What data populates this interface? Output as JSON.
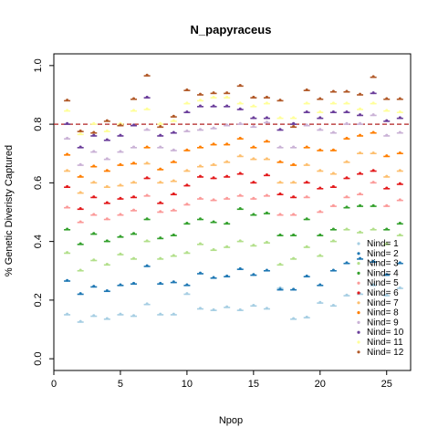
{
  "chart_data": {
    "type": "scatter",
    "title": "N_papyraceus",
    "xlabel": "Npop",
    "ylabel": "% Genetic Diveristy Captured",
    "xlim": [
      0,
      26.8
    ],
    "ylim": [
      -0.04,
      1.04
    ],
    "xticks": [
      0,
      5,
      10,
      15,
      20,
      25
    ],
    "yticks": [
      0.0,
      0.2,
      0.4,
      0.6,
      0.8,
      1.0
    ],
    "ytick_labels": [
      "0.0",
      "0.2",
      "0.4",
      "0.6",
      "0.8",
      "1.0"
    ],
    "reference_line": {
      "y": 0.8,
      "color": "#B22222",
      "style": "dashed"
    },
    "grid": false,
    "legend": {
      "position": "bottom-right"
    },
    "x": [
      1,
      2,
      3,
      4,
      5,
      6,
      7,
      8,
      9,
      10,
      11,
      12,
      13,
      14,
      15,
      16,
      17,
      18,
      19,
      20,
      21,
      22,
      23,
      24,
      25,
      26
    ],
    "series": [
      {
        "name": "Nind= 1",
        "color": "#A6CEE3",
        "values": [
          0.15,
          0.125,
          0.145,
          0.135,
          0.15,
          0.145,
          0.185,
          0.15,
          0.15,
          0.22,
          0.17,
          0.165,
          0.175,
          0.165,
          0.18,
          0.17,
          0.24,
          0.135,
          0.14,
          0.19,
          0.18,
          0.215,
          0.22,
          0.25,
          0.215,
          0.24
        ]
      },
      {
        "name": "Nind= 2",
        "color": "#1F78B4",
        "values": [
          0.265,
          0.22,
          0.245,
          0.23,
          0.25,
          0.255,
          0.315,
          0.255,
          0.26,
          0.25,
          0.29,
          0.275,
          0.28,
          0.305,
          0.285,
          0.3,
          0.235,
          0.235,
          0.28,
          0.25,
          0.3,
          0.325,
          0.34,
          0.33,
          0.285,
          0.325
        ]
      },
      {
        "name": "Nind= 3",
        "color": "#B2DF8A",
        "values": [
          0.36,
          0.3,
          0.335,
          0.32,
          0.355,
          0.34,
          0.4,
          0.34,
          0.35,
          0.36,
          0.39,
          0.37,
          0.38,
          0.4,
          0.385,
          0.395,
          0.32,
          0.34,
          0.38,
          0.35,
          0.4,
          0.44,
          0.43,
          0.44,
          0.39,
          0.42
        ]
      },
      {
        "name": "Nind= 4",
        "color": "#33A02C",
        "values": [
          0.44,
          0.39,
          0.425,
          0.4,
          0.415,
          0.425,
          0.475,
          0.41,
          0.42,
          0.46,
          0.475,
          0.465,
          0.46,
          0.51,
          0.49,
          0.495,
          0.42,
          0.42,
          0.475,
          0.42,
          0.44,
          0.515,
          0.52,
          0.52,
          0.44,
          0.46
        ]
      },
      {
        "name": "Nind= 5",
        "color": "#FB9A99",
        "values": [
          0.515,
          0.465,
          0.49,
          0.475,
          0.49,
          0.505,
          0.555,
          0.5,
          0.505,
          0.525,
          0.545,
          0.54,
          0.545,
          0.555,
          0.545,
          0.555,
          0.49,
          0.49,
          0.55,
          0.5,
          0.52,
          0.55,
          0.56,
          0.6,
          0.52,
          0.54
        ]
      },
      {
        "name": "Nind= 6",
        "color": "#E31A1C",
        "values": [
          0.585,
          0.51,
          0.55,
          0.53,
          0.545,
          0.55,
          0.615,
          0.53,
          0.56,
          0.59,
          0.62,
          0.615,
          0.62,
          0.63,
          0.6,
          0.625,
          0.56,
          0.55,
          0.6,
          0.58,
          0.585,
          0.615,
          0.63,
          0.64,
          0.58,
          0.595
        ]
      },
      {
        "name": "Nind= 7",
        "color": "#FDBF6F",
        "values": [
          0.64,
          0.565,
          0.6,
          0.585,
          0.59,
          0.6,
          0.665,
          0.6,
          0.605,
          0.64,
          0.655,
          0.66,
          0.67,
          0.69,
          0.68,
          0.68,
          0.6,
          0.6,
          0.66,
          0.64,
          0.63,
          0.67,
          0.7,
          0.7,
          0.62,
          0.64
        ]
      },
      {
        "name": "Nind= 8",
        "color": "#FF7F00",
        "values": [
          0.695,
          0.62,
          0.655,
          0.64,
          0.66,
          0.665,
          0.72,
          0.645,
          0.67,
          0.71,
          0.72,
          0.73,
          0.73,
          0.75,
          0.72,
          0.74,
          0.67,
          0.66,
          0.72,
          0.71,
          0.71,
          0.75,
          0.76,
          0.77,
          0.69,
          0.7
        ]
      },
      {
        "name": "Nind= 9",
        "color": "#CAB2D6",
        "values": [
          0.75,
          0.66,
          0.705,
          0.68,
          0.705,
          0.72,
          0.78,
          0.72,
          0.71,
          0.775,
          0.78,
          0.785,
          0.795,
          0.8,
          0.79,
          0.805,
          0.72,
          0.72,
          0.795,
          0.78,
          0.77,
          0.8,
          0.8,
          0.83,
          0.76,
          0.77
        ]
      },
      {
        "name": "Nind= 10",
        "color": "#6A3D9A",
        "values": [
          0.8,
          0.72,
          0.76,
          0.745,
          0.76,
          0.795,
          0.89,
          0.76,
          0.77,
          0.84,
          0.86,
          0.86,
          0.86,
          0.85,
          0.82,
          0.82,
          0.78,
          0.8,
          0.84,
          0.82,
          0.84,
          0.84,
          0.83,
          0.905,
          0.81,
          0.82
        ]
      },
      {
        "name": "Nind= 11",
        "color": "#FFFF99",
        "values": [
          0.845,
          0.765,
          0.8,
          0.775,
          0.8,
          0.845,
          0.85,
          0.8,
          0.81,
          0.87,
          0.88,
          0.89,
          0.89,
          0.87,
          0.86,
          0.87,
          0.82,
          0.82,
          0.87,
          0.84,
          0.87,
          0.87,
          0.85,
          0.87,
          0.845,
          0.84
        ]
      },
      {
        "name": "Nind= 12",
        "color": "#B15928",
        "values": [
          0.88,
          0.775,
          0.77,
          0.81,
          0.795,
          0.885,
          0.965,
          0.79,
          0.825,
          0.915,
          0.9,
          0.905,
          0.905,
          0.93,
          0.89,
          0.89,
          0.88,
          0.79,
          0.915,
          0.885,
          0.91,
          0.91,
          0.9,
          0.96,
          0.885,
          0.885
        ]
      }
    ]
  }
}
